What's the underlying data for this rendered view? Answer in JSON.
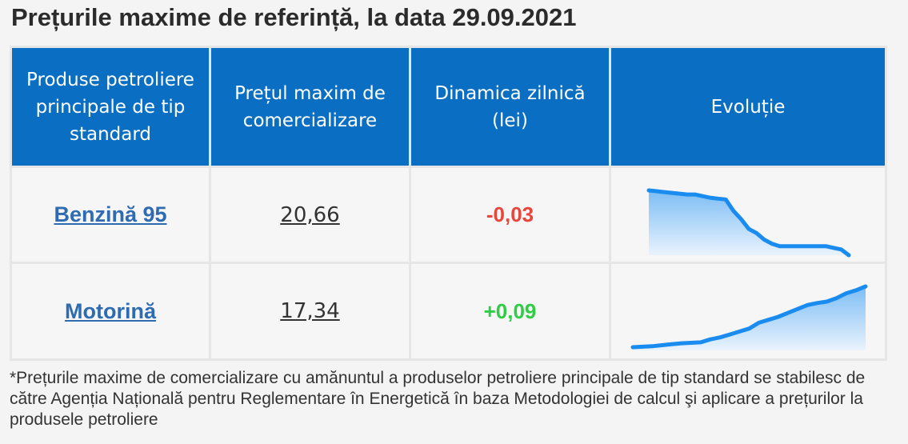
{
  "title": "Prețurile maxime de referință, la data 29.09.2021",
  "table": {
    "headers": {
      "product": "Produse petroliere principale de tip standard",
      "price": "Prețul maxim de comercializare",
      "dynamics": "Dinamica zilnică (lei)",
      "evolution": "Evoluție"
    },
    "rows": [
      {
        "product": "Benzină 95",
        "price": "20,66",
        "change": "-0,03",
        "change_color": "#e8453c",
        "trend": [
          21.45,
          21.44,
          21.43,
          21.42,
          21.41,
          21.4,
          21.4,
          21.38,
          21.36,
          21.35,
          21.34,
          21.2,
          21.1,
          20.98,
          20.93,
          20.85,
          20.8,
          20.77,
          20.77,
          20.77,
          20.77,
          20.77,
          20.77,
          20.77,
          20.75,
          20.73,
          20.66
        ]
      },
      {
        "product": "Motorină",
        "price": "17,34",
        "change": "+0,09",
        "change_color": "#2fcc46",
        "trend": [
          16.1,
          16.11,
          16.12,
          16.14,
          16.16,
          16.18,
          16.19,
          16.2,
          16.26,
          16.3,
          16.36,
          16.42,
          16.48,
          16.6,
          16.66,
          16.72,
          16.8,
          16.88,
          16.96,
          17.0,
          17.03,
          17.1,
          17.2,
          17.26,
          17.34
        ]
      }
    ]
  },
  "colors": {
    "header_bg": "#0a6fc2",
    "spark_line": "#1a8cf0",
    "spark_fill": "#cfe6fb"
  },
  "footnote": "*Prețurile maxime de comercializare cu amănuntul a produselor petroliere principale de tip standard se stabilesc de către Agenția Națională pentru Reglementare în Energetică în baza Metodologiei de calcul şi aplicare a prețurilor la produsele petroliere"
}
